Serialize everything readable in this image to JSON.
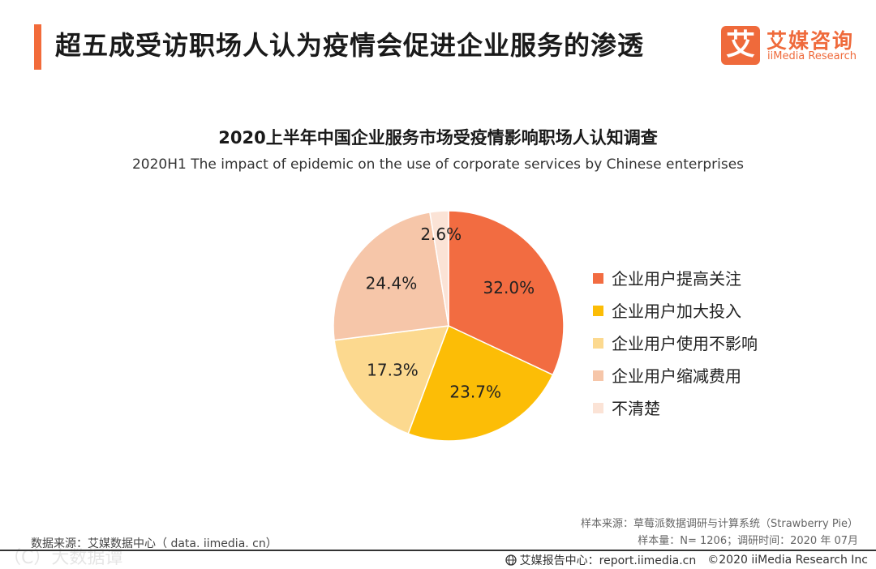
{
  "header": {
    "title": "超五成受访职场人认为疫情会促进企业服务的渗透"
  },
  "logo": {
    "mark": "艾",
    "cn": "艾媒咨询",
    "en": "iiMedia Research",
    "color": "#ef6a3b"
  },
  "chart_data": {
    "type": "pie",
    "title": "2020上半年中国企业服务市场受疫情影响职场人认知调查",
    "subtitle": "2020H1 The impact of epidemic on the use of corporate services by Chinese enterprises",
    "unit": "%",
    "slices": [
      {
        "label": "企业用户提高关注",
        "value": 32.0,
        "display": "32.0%",
        "color": "#f26c41"
      },
      {
        "label": "企业用户加大投入",
        "value": 23.7,
        "display": "23.7%",
        "color": "#fcbd06"
      },
      {
        "label": "企业用户使用不影响",
        "value": 17.3,
        "display": "17.3%",
        "color": "#fcd98f"
      },
      {
        "label": "企业用户缩减费用",
        "value": 24.4,
        "display": "24.4%",
        "color": "#f6c6a9"
      },
      {
        "label": "不清楚",
        "value": 2.6,
        "display": "2.6%",
        "color": "#fbe3d6"
      }
    ],
    "legend_position": "right"
  },
  "notes": {
    "sample_source": "样本来源：草莓派数据调研与计算系统（Strawberry Pie）",
    "sample_size": "样本量：N= 1206；调研时间：2020 年 07月"
  },
  "source": {
    "text": "数据来源：艾媒数据中心（ data. iimedia. cn）"
  },
  "watermark": {
    "text": "（C）大数据谭"
  },
  "footer": {
    "report_center": "艾媒报告中心：report.iimedia.cn",
    "copyright": "©2020  iiMedia Research  Inc"
  }
}
